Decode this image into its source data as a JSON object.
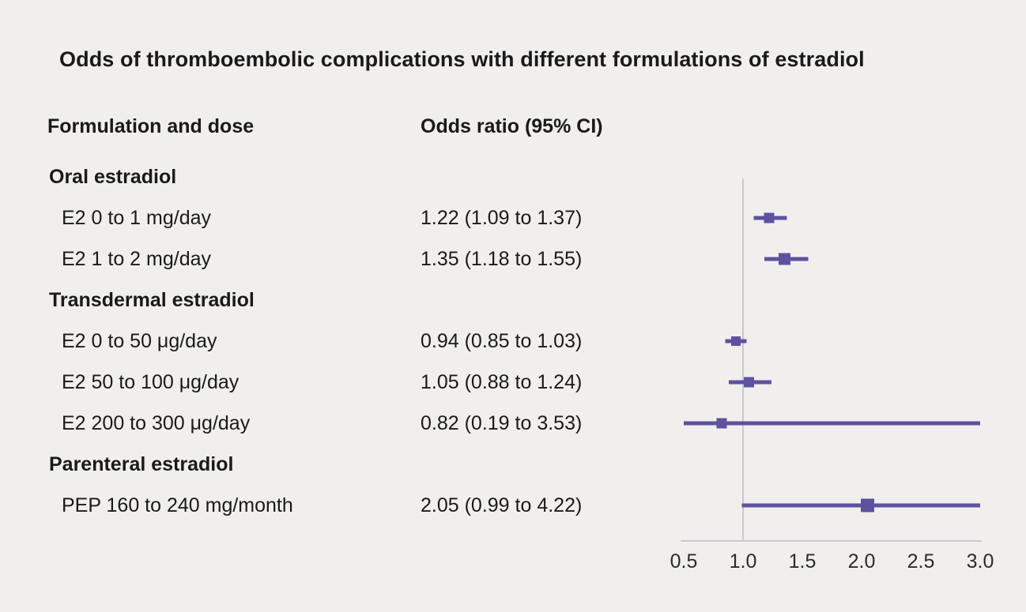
{
  "title": "Odds of thromboembolic complications with different formulations of estradiol",
  "columns": {
    "label_header": "Formulation and dose",
    "estimate_header": "Odds ratio (95% CI)"
  },
  "colors": {
    "background": "#f0efed",
    "accent_purple": "#5d51a0",
    "axis_gray": "#c9c8d0",
    "text": "#1a1a1a"
  },
  "chart_data": {
    "type": "forest",
    "title": "Odds of thromboembolic complications with different formulations of estradiol",
    "xlabel": "",
    "ylabel": "",
    "xlim": [
      0.5,
      3.0
    ],
    "x_ticks": [
      0.5,
      1.0,
      1.5,
      2.0,
      2.5,
      3.0
    ],
    "x_tick_labels": [
      "0.5",
      "1.0",
      "1.5",
      "2.0",
      "2.5",
      "3.0"
    ],
    "reference_line": 1.0,
    "grid": false,
    "legend": "none",
    "rows": [
      {
        "kind": "group",
        "label": "Oral estradiol"
      },
      {
        "kind": "item",
        "label": "E2 0 to 1 mg/day",
        "estimate_text": "1.22 (1.09 to 1.37)",
        "or": 1.22,
        "ci_low": 1.09,
        "ci_high": 1.37,
        "marker_size": 13
      },
      {
        "kind": "item",
        "label": "E2 1 to 2 mg/day",
        "estimate_text": "1.35 (1.18 to 1.55)",
        "or": 1.35,
        "ci_low": 1.18,
        "ci_high": 1.55,
        "marker_size": 15
      },
      {
        "kind": "group",
        "label": "Transdermal estradiol"
      },
      {
        "kind": "item",
        "label": "E2 0 to 50 μg/day",
        "estimate_text": "0.94 (0.85 to 1.03)",
        "or": 0.94,
        "ci_low": 0.85,
        "ci_high": 1.03,
        "marker_size": 12
      },
      {
        "kind": "item",
        "label": "E2 50 to 100 μg/day",
        "estimate_text": "1.05 (0.88 to 1.24)",
        "or": 1.05,
        "ci_low": 0.88,
        "ci_high": 1.24,
        "marker_size": 13
      },
      {
        "kind": "item",
        "label": "E2 200 to 300 μg/day",
        "estimate_text": "0.82 (0.19 to 3.53)",
        "or": 0.82,
        "ci_low": 0.19,
        "ci_high": 3.53,
        "marker_size": 13
      },
      {
        "kind": "group",
        "label": "Parenteral estradiol"
      },
      {
        "kind": "item",
        "label": "PEP 160 to 240 mg/month",
        "estimate_text": "2.05 (0.99 to 4.22)",
        "or": 2.05,
        "ci_low": 0.99,
        "ci_high": 4.22,
        "marker_size": 17
      }
    ]
  }
}
